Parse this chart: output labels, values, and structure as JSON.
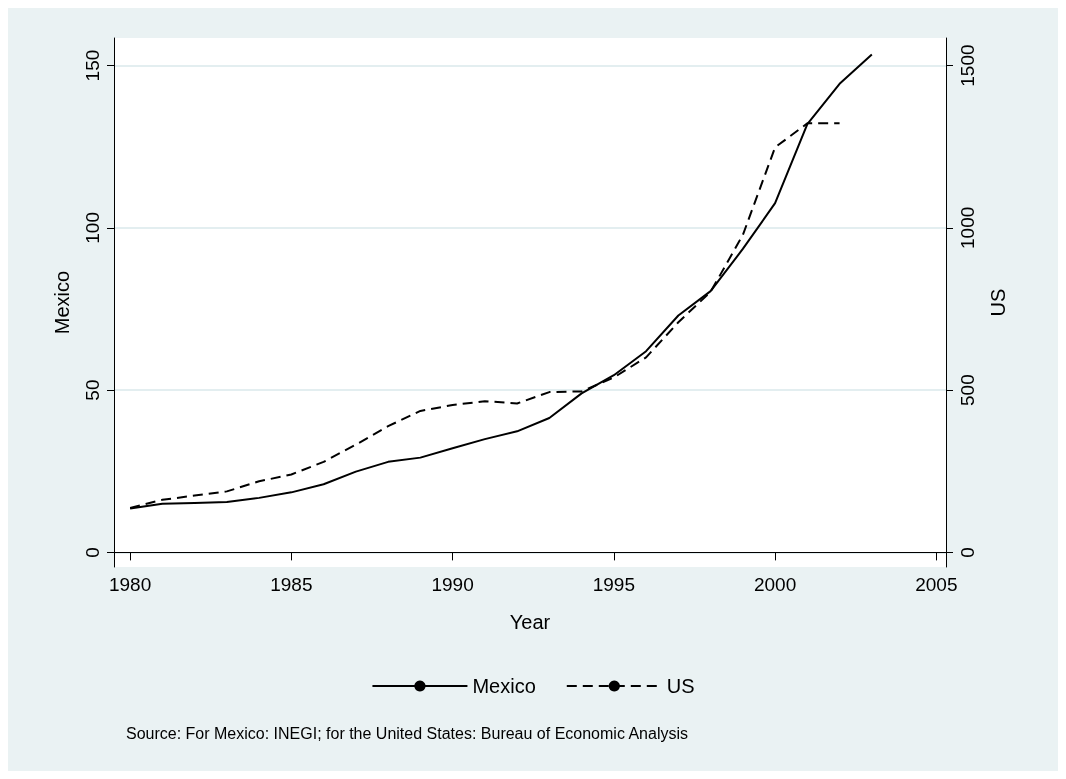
{
  "chart_data": {
    "type": "line",
    "xlabel": "Year",
    "ylabel": "Mexico",
    "y2label": "US",
    "x": [
      1980,
      1981,
      1982,
      1983,
      1984,
      1985,
      1986,
      1987,
      1988,
      1989,
      1990,
      1991,
      1992,
      1993,
      1994,
      1995,
      1996,
      1997,
      1998,
      1999,
      2000,
      2001,
      2002,
      2003
    ],
    "series": [
      {
        "name": "Mexico",
        "color": "#000000",
        "line_style": "solid",
        "values": [
          13.5,
          15,
          15.2,
          15.5,
          16.8,
          18.5,
          21,
          24.9,
          27.9,
          29.2,
          32.1,
          34.9,
          37.3,
          41.4,
          49,
          54.6,
          62,
          73,
          80.5,
          93.5,
          107.6,
          132,
          144.4,
          153.4
        ]
      },
      {
        "name": "US",
        "color": "#000000",
        "line_style": "dashed",
        "axis": "y2",
        "values": [
          137,
          162,
          175,
          188,
          219,
          240,
          279,
          332,
          389,
          436,
          454,
          466,
          459,
          494,
          496,
          539,
          601,
          709,
          803,
          978,
          1248,
          1322,
          1322,
          null
        ]
      }
    ],
    "xlim": [
      1979.5,
      2005.3
    ],
    "xticks": [
      1980,
      1985,
      1990,
      1995,
      2000,
      2005
    ],
    "ylim": [
      -4.5,
      158.5
    ],
    "yticks": [
      0,
      50,
      100,
      150
    ],
    "y2lim": [
      -45,
      1585
    ],
    "y2ticks": [
      0,
      500,
      1000,
      1500
    ],
    "grid": "y",
    "legend": "bottom",
    "marker": "none",
    "annotations": [
      "Source: For Mexico: INEGI; for the United States: Bureau of Economic Analysis"
    ]
  }
}
